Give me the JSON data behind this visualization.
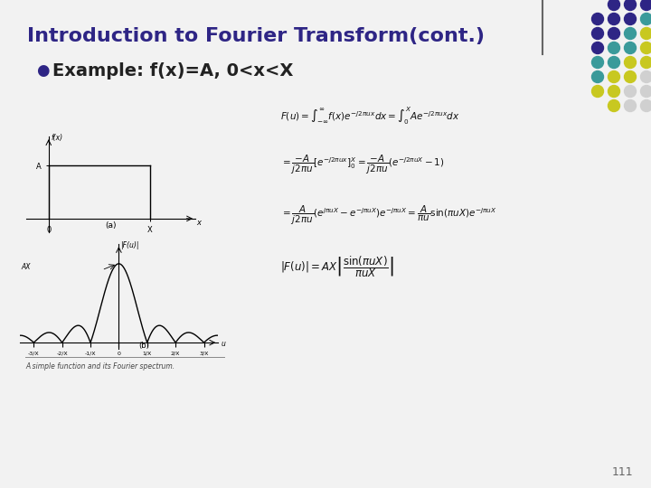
{
  "title": "Introduction to Fourier Transform(cont.)",
  "bullet_marker": "l",
  "bullet": "Example: f(x)=A, 0<x<X",
  "page_number": "111",
  "caption": "A simple function and its Fourier spectrum.",
  "title_color": "#2E2585",
  "title_fontsize": 16,
  "bullet_fontsize": 14,
  "background_color": "#f0f0f0",
  "slide_bg": "#f0f0f0",
  "dot_grid": {
    "rows": 8,
    "cols": 4,
    "colors_by_row": [
      [
        "#2E2585",
        "#2E2585",
        "#2E2585"
      ],
      [
        "#2E2585",
        "#2E2585",
        "#2E2585",
        "#3a9a9a"
      ],
      [
        "#2E2585",
        "#2E2585",
        "#3a9a9a",
        "#c8c820"
      ],
      [
        "#2E2585",
        "#3a9a9a",
        "#3a9a9a",
        "#c8c820"
      ],
      [
        "#3a9a9a",
        "#3a9a9a",
        "#c8c820",
        "#c8c820"
      ],
      [
        "#3a9a9a",
        "#c8c820",
        "#c8c820",
        "#d0d0d0"
      ],
      [
        "#c8c820",
        "#c8c820",
        "#d0d0d0",
        "#d0d0d0"
      ],
      [
        "#c8c820",
        "#d0d0d0",
        "#d0d0d0"
      ]
    ]
  },
  "eq1": "$F(u) = \\int_{-\\infty}^{\\infty} f(x)e^{-j2\\pi ux}dx = \\int_0^X Ae^{-j2\\pi ux}dx$",
  "eq2": "$= \\dfrac{-A}{j2\\pi u}[e^{-j2\\pi ux}]_0^X = \\dfrac{-A}{j2\\pi u}(e^{-j2\\pi uX}-1)$",
  "eq3": "$= \\dfrac{A}{j2\\pi u}(e^{j\\pi uX}-e^{-j\\pi uX})e^{-j\\pi uX} = \\dfrac{A}{\\pi u}\\sin(\\pi uX)e^{-j\\pi uX}$",
  "eq4": "$|F(u)| = AX\\left|\\dfrac{\\sin(\\pi uX)}{\\pi uX}\\right|$"
}
